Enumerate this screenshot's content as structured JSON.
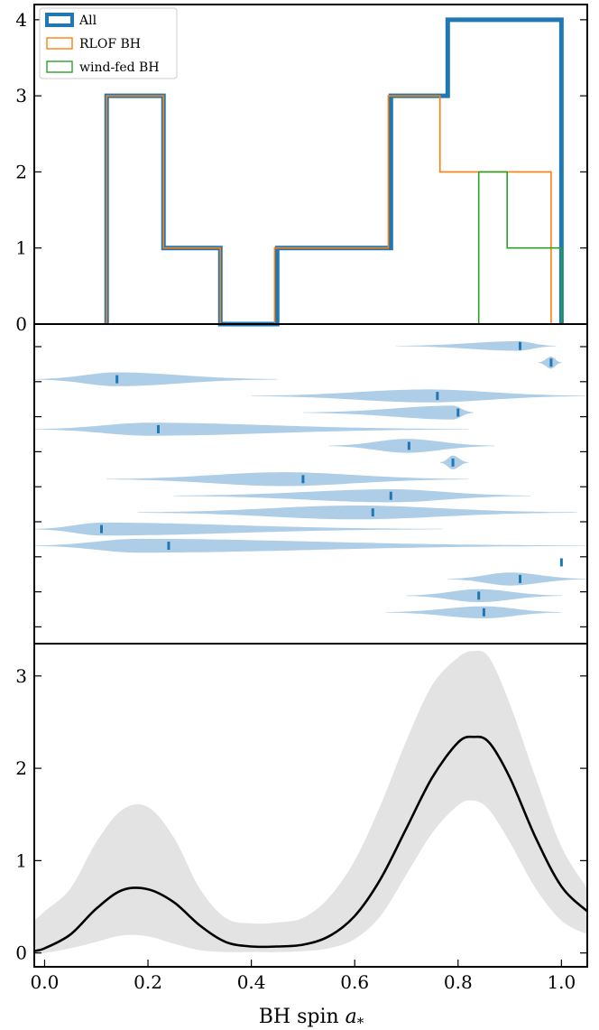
{
  "figure": {
    "xlabel": "BH spin a",
    "xlabel_sub": "*",
    "colors": {
      "all": "#1f77b4",
      "rlof": "#ff7f0e",
      "wind": "#2ca02c",
      "violin": "#aecde6",
      "marker": "#1f77b4",
      "band": "#e3e3e3",
      "line": "#000000"
    }
  },
  "chart_data": [
    {
      "type": "histogram-step",
      "title": "",
      "xlabel": "",
      "ylabel": "",
      "xlim": [
        -0.02,
        1.05
      ],
      "ylim": [
        0,
        4.2
      ],
      "yticks": [
        0,
        1,
        2,
        3,
        4
      ],
      "legend": {
        "placement": "top-left",
        "entries": [
          "All",
          "RLOF BH",
          "wind-fed BH"
        ]
      },
      "series": [
        {
          "name": "All",
          "edges": [
            0.12,
            0.23,
            0.34,
            0.45,
            0.67,
            0.78,
            1.0
          ],
          "counts": [
            3,
            1,
            0,
            1,
            3,
            4
          ]
        },
        {
          "name": "RLOF BH",
          "edges": [
            0.12,
            0.23,
            0.34,
            0.445,
            0.665,
            0.765,
            0.98
          ],
          "counts": [
            3,
            1,
            0,
            1,
            3,
            2
          ]
        },
        {
          "name": "wind-fed BH",
          "edges": [
            0.84,
            0.895,
            1.0
          ],
          "counts": [
            2,
            1
          ]
        }
      ]
    },
    {
      "type": "violin",
      "title": "",
      "xlim": [
        -0.02,
        1.05
      ],
      "rows": 17,
      "items": [
        {
          "center": 0.915,
          "xmin": 0.68,
          "xmax": 0.99,
          "width": 0.55,
          "median": 0.92
        },
        {
          "center": 0.98,
          "xmin": 0.955,
          "xmax": 1.0,
          "width": 0.7,
          "median": 0.98
        },
        {
          "center": 0.14,
          "xmin": -0.02,
          "xmax": 0.45,
          "width": 0.8,
          "median": 0.14
        },
        {
          "center": 0.74,
          "xmin": 0.4,
          "xmax": 1.05,
          "width": 0.75,
          "median": 0.76
        },
        {
          "center": 0.79,
          "xmin": 0.5,
          "xmax": 0.83,
          "width": 0.8,
          "median": 0.8
        },
        {
          "center": 0.2,
          "xmin": -0.02,
          "xmax": 0.82,
          "width": 0.75,
          "median": 0.22
        },
        {
          "center": 0.7,
          "xmin": 0.55,
          "xmax": 0.87,
          "width": 0.8,
          "median": 0.705
        },
        {
          "center": 0.79,
          "xmin": 0.765,
          "xmax": 0.82,
          "width": 0.8,
          "median": 0.79
        },
        {
          "center": 0.46,
          "xmin": 0.12,
          "xmax": 0.82,
          "width": 0.8,
          "median": 0.5
        },
        {
          "center": 0.67,
          "xmin": 0.25,
          "xmax": 0.94,
          "width": 0.75,
          "median": 0.67
        },
        {
          "center": 0.6,
          "xmin": 0.18,
          "xmax": 1.03,
          "width": 0.8,
          "median": 0.635
        },
        {
          "center": 0.11,
          "xmin": -0.02,
          "xmax": 0.77,
          "width": 0.75,
          "median": 0.11
        },
        {
          "center": 0.18,
          "xmin": -0.02,
          "xmax": 1.05,
          "width": 0.8,
          "median": 0.24
        },
        {
          "center": 1.0,
          "xmin": 0.995,
          "xmax": 1.005,
          "width": 0.0,
          "median": 1.0
        },
        {
          "center": 0.9,
          "xmin": 0.78,
          "xmax": 1.05,
          "width": 0.75,
          "median": 0.92
        },
        {
          "center": 0.84,
          "xmin": 0.7,
          "xmax": 1.0,
          "width": 0.75,
          "median": 0.84
        },
        {
          "center": 0.85,
          "xmin": 0.66,
          "xmax": 1.0,
          "width": 0.7,
          "median": 0.85
        }
      ]
    },
    {
      "type": "area",
      "title": "",
      "xlabel": "BH spin a*",
      "ylabel": "",
      "xlim": [
        -0.02,
        1.05
      ],
      "ylim": [
        -0.15,
        3.35
      ],
      "yticks": [
        0,
        1,
        2,
        3
      ],
      "xticks": [
        "0.0",
        "0.2",
        "0.4",
        "0.6",
        "0.8",
        "1.0"
      ],
      "x": [
        -0.02,
        0.0,
        0.05,
        0.1,
        0.15,
        0.2,
        0.25,
        0.3,
        0.35,
        0.4,
        0.45,
        0.5,
        0.55,
        0.6,
        0.65,
        0.7,
        0.75,
        0.8,
        0.83,
        0.86,
        0.9,
        0.95,
        1.0,
        1.05
      ],
      "series": [
        {
          "name": "median",
          "values": [
            0.02,
            0.05,
            0.2,
            0.48,
            0.68,
            0.69,
            0.55,
            0.3,
            0.12,
            0.07,
            0.07,
            0.09,
            0.18,
            0.4,
            0.8,
            1.35,
            1.9,
            2.28,
            2.34,
            2.28,
            1.9,
            1.25,
            0.72,
            0.45
          ]
        },
        {
          "name": "lower",
          "values": [
            0.0,
            0.0,
            0.05,
            0.12,
            0.19,
            0.18,
            0.1,
            0.03,
            0.01,
            0.01,
            0.01,
            0.02,
            0.05,
            0.15,
            0.4,
            0.85,
            1.3,
            1.6,
            1.65,
            1.55,
            1.2,
            0.7,
            0.35,
            0.2
          ]
        },
        {
          "name": "upper",
          "values": [
            0.35,
            0.45,
            0.7,
            1.2,
            1.55,
            1.58,
            1.25,
            0.7,
            0.38,
            0.32,
            0.33,
            0.38,
            0.6,
            1.0,
            1.6,
            2.3,
            2.9,
            3.2,
            3.27,
            3.2,
            2.7,
            1.9,
            1.15,
            0.7
          ]
        }
      ]
    }
  ]
}
